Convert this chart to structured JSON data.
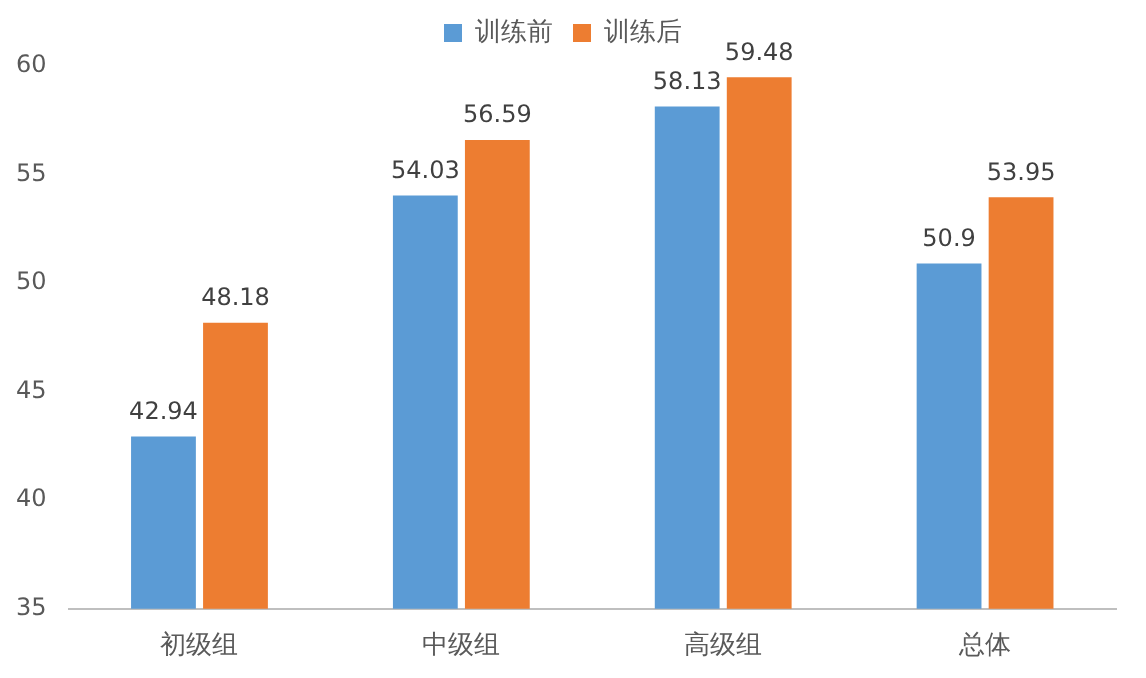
{
  "chart_data": {
    "type": "bar",
    "categories": [
      "初级组",
      "中级组",
      "高级组",
      "总体"
    ],
    "series": [
      {
        "name": "训练前",
        "color": "#5b9bd5",
        "values": [
          42.94,
          54.03,
          58.13,
          50.9
        ]
      },
      {
        "name": "训练后",
        "color": "#ed7d31",
        "values": [
          48.18,
          56.59,
          59.48,
          53.95
        ]
      }
    ],
    "ylim": [
      35,
      60
    ],
    "yticks": [
      35,
      40,
      45,
      50,
      55,
      60
    ],
    "grid": false,
    "legend": "top",
    "data_labels": true
  }
}
